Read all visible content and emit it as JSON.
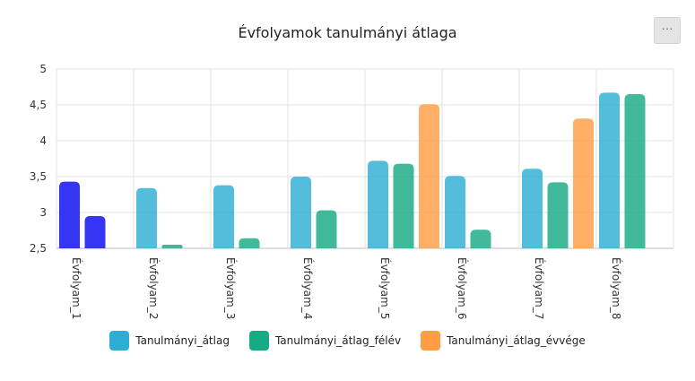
{
  "menu": {
    "label": "···"
  },
  "chart_data": {
    "type": "bar",
    "title": "Évfolyamok tanulmányi átlaga",
    "xlabel": "",
    "ylabel": "",
    "ylim": [
      2.5,
      5
    ],
    "yticks": [
      "2,5",
      "3",
      "3,5",
      "4",
      "4,5",
      "5"
    ],
    "ytick_values": [
      2.5,
      3,
      3.5,
      4,
      4.5,
      5
    ],
    "grid": true,
    "legend_position": "bottom",
    "categories": [
      "Évfolyam_1",
      "Évfolyam_2",
      "Évfolyam_3",
      "Évfolyam_4",
      "Évfolyam_5",
      "Évfolyam_6",
      "Évfolyam_7",
      "Évfolyam_8"
    ],
    "series": [
      {
        "name": "Tanulmányi_átlag",
        "color": "#2eaed3",
        "values": [
          3.43,
          3.34,
          3.38,
          3.5,
          3.72,
          3.51,
          3.61,
          4.67
        ]
      },
      {
        "name": "Tanulmányi_átlag_félév",
        "color": "#16ab85",
        "values": [
          2.95,
          2.55,
          2.64,
          3.03,
          3.68,
          2.76,
          3.42,
          4.65
        ]
      },
      {
        "name": "Tanulmányi_átlag_évvége",
        "color": "#ff9d44",
        "values": [
          null,
          null,
          null,
          null,
          4.51,
          null,
          4.31,
          null
        ]
      }
    ],
    "highlighted_category": "Évfolyam_1",
    "highlight_color": "#1f1ff2"
  }
}
